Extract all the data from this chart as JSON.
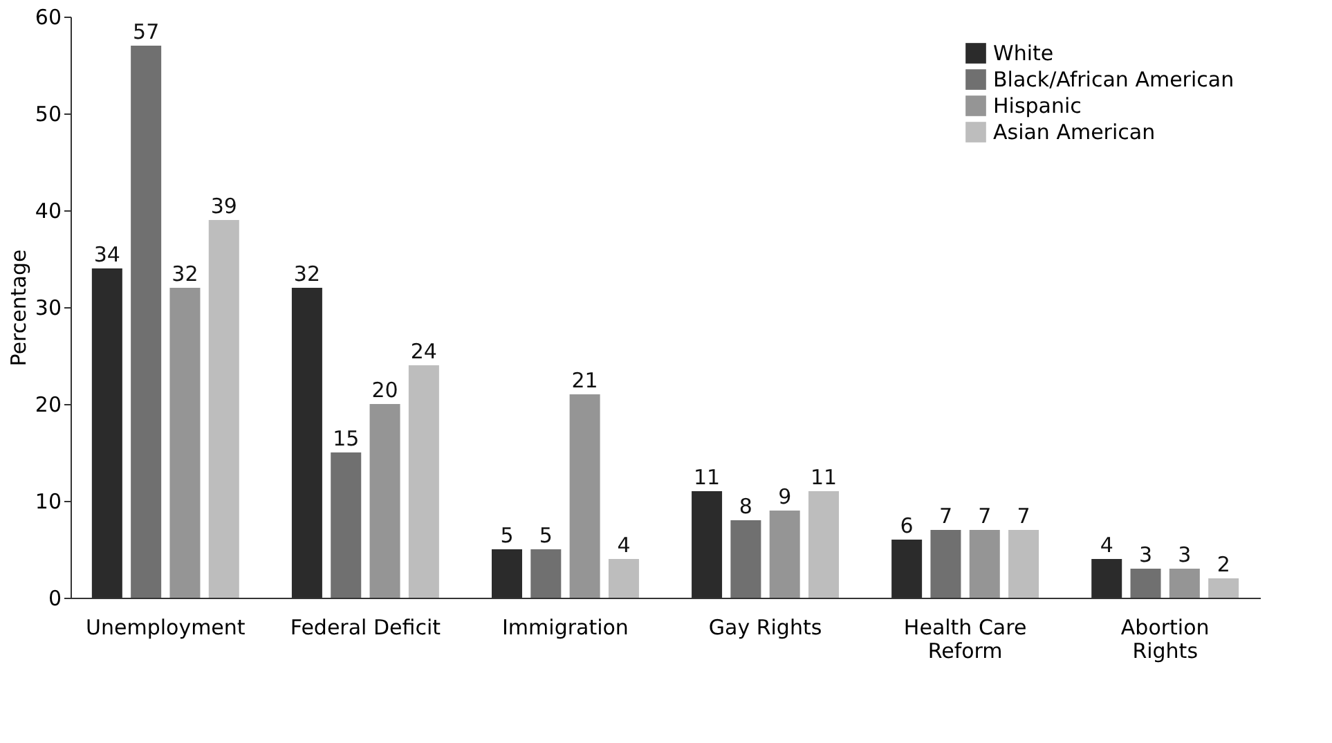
{
  "chart_data": {
    "type": "bar",
    "ylabel": "Percentage",
    "categories": [
      "Unemployment",
      "Federal Deficit",
      "Immigration",
      "Gay Rights",
      "Health Care\nReform",
      "Abortion\nRights"
    ],
    "series": [
      {
        "name": "White",
        "color": "#2b2b2b",
        "values": [
          34,
          32,
          5,
          11,
          6,
          4
        ]
      },
      {
        "name": "Black/African American",
        "color": "#707070",
        "values": [
          57,
          15,
          5,
          8,
          7,
          3
        ]
      },
      {
        "name": "Hispanic",
        "color": "#959595",
        "values": [
          32,
          20,
          21,
          9,
          7,
          3
        ]
      },
      {
        "name": "Asian American",
        "color": "#bdbdbd",
        "values": [
          39,
          24,
          4,
          11,
          7,
          2
        ]
      }
    ],
    "ylim": [
      0,
      60
    ],
    "yticks": [
      0,
      10,
      20,
      30,
      40,
      50,
      60
    ],
    "grid": false,
    "legend": "top right",
    "data_labels": true
  }
}
